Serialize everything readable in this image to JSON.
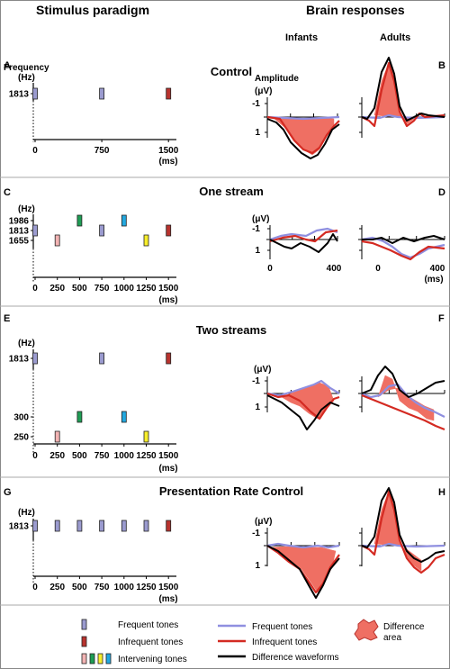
{
  "headers": {
    "left": "Stimulus paradigm",
    "right": "Brain responses",
    "infants": "Infants",
    "adults": "Adults"
  },
  "colors": {
    "frequent": "#9b9bcf",
    "infrequent": "#b8332e",
    "int_pink": "#f2b3b3",
    "int_green": "#1f9e55",
    "int_cyan": "#23a8df",
    "int_yellow": "#f7ee2b",
    "diff_fill": "#ef6f63",
    "wave_freq": "#8f8fe0",
    "wave_infreq": "#d42a22",
    "wave_diff": "#000000"
  },
  "panels": [
    {
      "title": "Control",
      "left_letter": "A",
      "right_letter": "B",
      "y_label": "Frequency",
      "y_unit": "(Hz)",
      "time_unit": "(ms)",
      "amp_label": "Amplitude",
      "uv_label": "(μV)",
      "amp_minus": "-1",
      "amp_plus": "1",
      "freq_ticks": [
        "1813"
      ],
      "time_ticks": [
        "0",
        "750",
        "1500"
      ],
      "tones": [
        {
          "t": 0,
          "f": "1813",
          "type": "frequent"
        },
        {
          "t": 750,
          "f": "1813",
          "type": "frequent"
        },
        {
          "t": 1500,
          "f": "1813",
          "type": "infrequent"
        }
      ]
    },
    {
      "title": "One stream",
      "left_letter": "C",
      "right_letter": "D",
      "y_unit": "(Hz)",
      "time_unit": "(ms)",
      "uv_label": "(μV)",
      "amp_minus": "-1",
      "amp_plus": "1",
      "freq_ticks": [
        "1986",
        "1813",
        "1655"
      ],
      "time_ticks": [
        "0",
        "250",
        "500",
        "750",
        "1000",
        "1250",
        "1500"
      ],
      "resp_ticks": [
        "0",
        "400"
      ],
      "resp_unit": "(ms)",
      "tones": [
        {
          "t": 0,
          "f": "1813",
          "type": "frequent"
        },
        {
          "t": 250,
          "f": "1655",
          "type": "int_pink"
        },
        {
          "t": 500,
          "f": "1986",
          "type": "int_green"
        },
        {
          "t": 750,
          "f": "1813",
          "type": "frequent"
        },
        {
          "t": 1000,
          "f": "1986",
          "type": "int_cyan"
        },
        {
          "t": 1250,
          "f": "1655",
          "type": "int_yellow"
        },
        {
          "t": 1500,
          "f": "1813",
          "type": "infrequent"
        }
      ]
    },
    {
      "title": "Two streams",
      "left_letter": "E",
      "right_letter": "F",
      "y_unit": "(Hz)",
      "time_unit": "(ms)",
      "uv_label": "(μV)",
      "amp_minus": "-1",
      "amp_plus": "1",
      "freq_ticks": [
        "1813",
        "300",
        "250"
      ],
      "time_ticks": [
        "0",
        "250",
        "500",
        "750",
        "1000",
        "1250",
        "1500"
      ],
      "tones": [
        {
          "t": 0,
          "f": "1813",
          "type": "frequent"
        },
        {
          "t": 250,
          "f": "250",
          "type": "int_pink"
        },
        {
          "t": 500,
          "f": "300",
          "type": "int_green"
        },
        {
          "t": 750,
          "f": "1813",
          "type": "frequent"
        },
        {
          "t": 1000,
          "f": "300",
          "type": "int_cyan"
        },
        {
          "t": 1250,
          "f": "250",
          "type": "int_yellow"
        },
        {
          "t": 1500,
          "f": "1813",
          "type": "infrequent"
        }
      ]
    },
    {
      "title": "Presentation Rate Control",
      "left_letter": "G",
      "right_letter": "H",
      "y_unit": "(Hz)",
      "time_unit": "(ms)",
      "uv_label": "(μV)",
      "amp_minus": "-1",
      "amp_plus": "1",
      "freq_ticks": [
        "1813"
      ],
      "time_ticks": [
        "0",
        "250",
        "500",
        "750",
        "1000",
        "1250",
        "1500"
      ],
      "tones": [
        {
          "t": 0,
          "f": "1813",
          "type": "frequent"
        },
        {
          "t": 250,
          "f": "1813",
          "type": "frequent"
        },
        {
          "t": 500,
          "f": "1813",
          "type": "frequent"
        },
        {
          "t": 750,
          "f": "1813",
          "type": "frequent"
        },
        {
          "t": 1000,
          "f": "1813",
          "type": "frequent"
        },
        {
          "t": 1250,
          "f": "1813",
          "type": "frequent"
        },
        {
          "t": 1500,
          "f": "1813",
          "type": "infrequent"
        }
      ]
    }
  ],
  "legend": {
    "frequent_tones": "Frequent tones",
    "infrequent_tones": "Infrequent tones",
    "intervening_tones": "Intervening tones",
    "wave_frequent": "Frequent tones",
    "wave_infrequent": "Infrequent tones",
    "wave_difference": "Difference waveforms",
    "difference_area_1": "Difference",
    "difference_area_2": "area"
  }
}
